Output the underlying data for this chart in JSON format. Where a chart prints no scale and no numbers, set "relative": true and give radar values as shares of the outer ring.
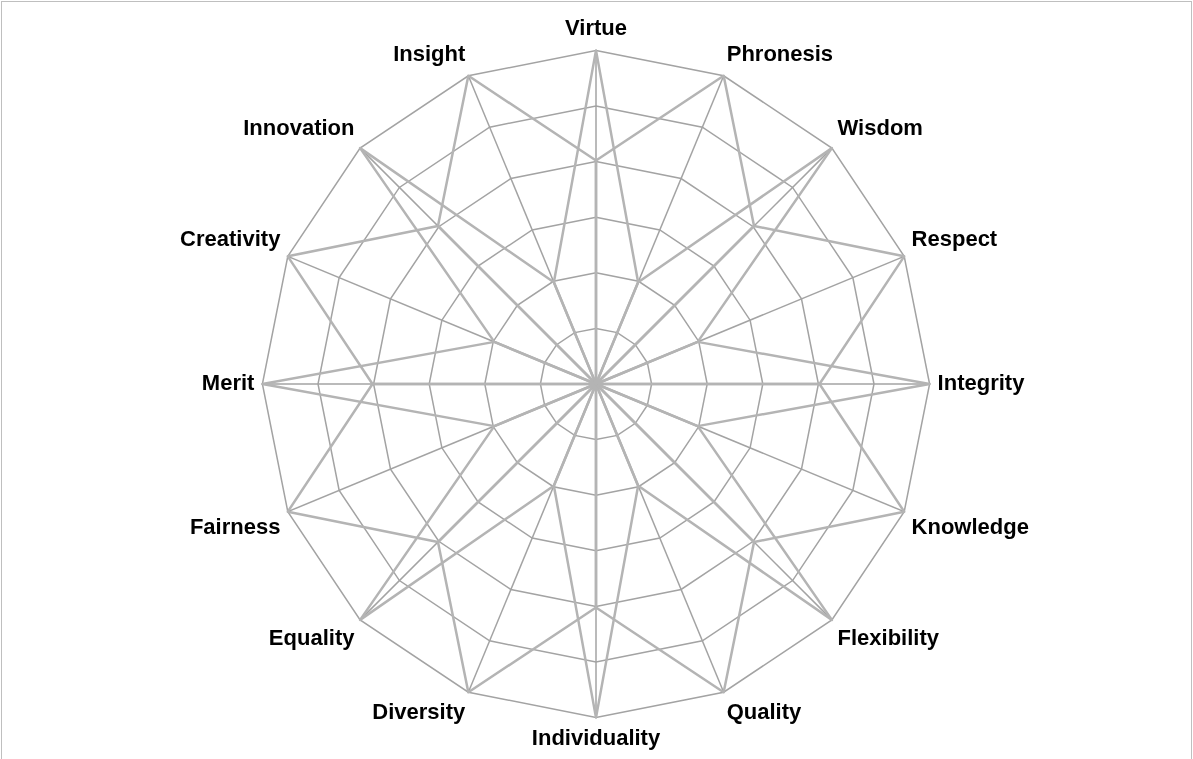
{
  "chart_data": {
    "type": "radar",
    "relative": true,
    "grid": true,
    "legend": false,
    "marker": "none",
    "line_style": "solid",
    "categories": [
      "Virtue",
      "Phronesis",
      "Wisdom",
      "Respect",
      "Integrity",
      "Knowledge",
      "Flexibility",
      "Quality",
      "Individuality",
      "Diversity",
      "Equality",
      "Fairness",
      "Merit",
      "Creativity",
      "Innovation",
      "Insight"
    ],
    "series": [
      {
        "color": "#b4b4b4",
        "values": [
          1,
          0.33,
          0,
          0,
          0,
          0,
          0,
          0,
          0,
          0,
          0,
          0,
          0,
          0,
          0,
          0.33
        ]
      },
      {
        "color": "#b4b4b4",
        "values": [
          0.67,
          1,
          0.67,
          0,
          0,
          0,
          0,
          0,
          0,
          0,
          0,
          0,
          0,
          0,
          0,
          0
        ]
      },
      {
        "color": "#b4b4b4",
        "values": [
          0,
          0.33,
          1,
          0.33,
          0,
          0,
          0,
          0,
          0,
          0,
          0,
          0,
          0,
          0,
          0,
          0
        ]
      },
      {
        "color": "#b4b4b4",
        "values": [
          0,
          0,
          0.67,
          1,
          0.67,
          0,
          0,
          0,
          0,
          0,
          0,
          0,
          0,
          0,
          0,
          0
        ]
      },
      {
        "color": "#b4b4b4",
        "values": [
          0,
          0,
          0,
          0.33,
          1,
          0.33,
          0,
          0,
          0,
          0,
          0,
          0,
          0,
          0,
          0,
          0
        ]
      },
      {
        "color": "#b4b4b4",
        "values": [
          0,
          0,
          0,
          0,
          0.67,
          1,
          0.67,
          0,
          0,
          0,
          0,
          0,
          0,
          0,
          0,
          0
        ]
      },
      {
        "color": "#b4b4b4",
        "values": [
          0,
          0,
          0,
          0,
          0,
          0.33,
          1,
          0.33,
          0,
          0,
          0,
          0,
          0,
          0,
          0,
          0
        ]
      },
      {
        "color": "#b4b4b4",
        "values": [
          0,
          0,
          0,
          0,
          0,
          0,
          0.67,
          1,
          0.67,
          0,
          0,
          0,
          0,
          0,
          0,
          0
        ]
      },
      {
        "color": "#b4b4b4",
        "values": [
          0,
          0,
          0,
          0,
          0,
          0,
          0,
          0.33,
          1,
          0.33,
          0,
          0,
          0,
          0,
          0,
          0
        ]
      },
      {
        "color": "#b4b4b4",
        "values": [
          0,
          0,
          0,
          0,
          0,
          0,
          0,
          0,
          0.67,
          1,
          0.67,
          0,
          0,
          0,
          0,
          0
        ]
      },
      {
        "color": "#b4b4b4",
        "values": [
          0,
          0,
          0,
          0,
          0,
          0,
          0,
          0,
          0,
          0.33,
          1,
          0.33,
          0,
          0,
          0,
          0
        ]
      },
      {
        "color": "#b4b4b4",
        "values": [
          0,
          0,
          0,
          0,
          0,
          0,
          0,
          0,
          0,
          0,
          0.67,
          1,
          0.67,
          0,
          0,
          0
        ]
      },
      {
        "color": "#b4b4b4",
        "values": [
          0,
          0,
          0,
          0,
          0,
          0,
          0,
          0,
          0,
          0,
          0,
          0.33,
          1,
          0.33,
          0,
          0
        ]
      },
      {
        "color": "#b4b4b4",
        "values": [
          0,
          0,
          0,
          0,
          0,
          0,
          0,
          0,
          0,
          0,
          0,
          0,
          0.67,
          1,
          0.67,
          0
        ]
      },
      {
        "color": "#b4b4b4",
        "values": [
          0,
          0,
          0,
          0,
          0,
          0,
          0,
          0,
          0,
          0,
          0,
          0,
          0,
          0.33,
          1,
          0.33
        ]
      },
      {
        "color": "#b4b4b4",
        "values": [
          0.67,
          0,
          0,
          0,
          0,
          0,
          0,
          0,
          0,
          0,
          0,
          0,
          0,
          0,
          0.67,
          1
        ]
      }
    ]
  }
}
